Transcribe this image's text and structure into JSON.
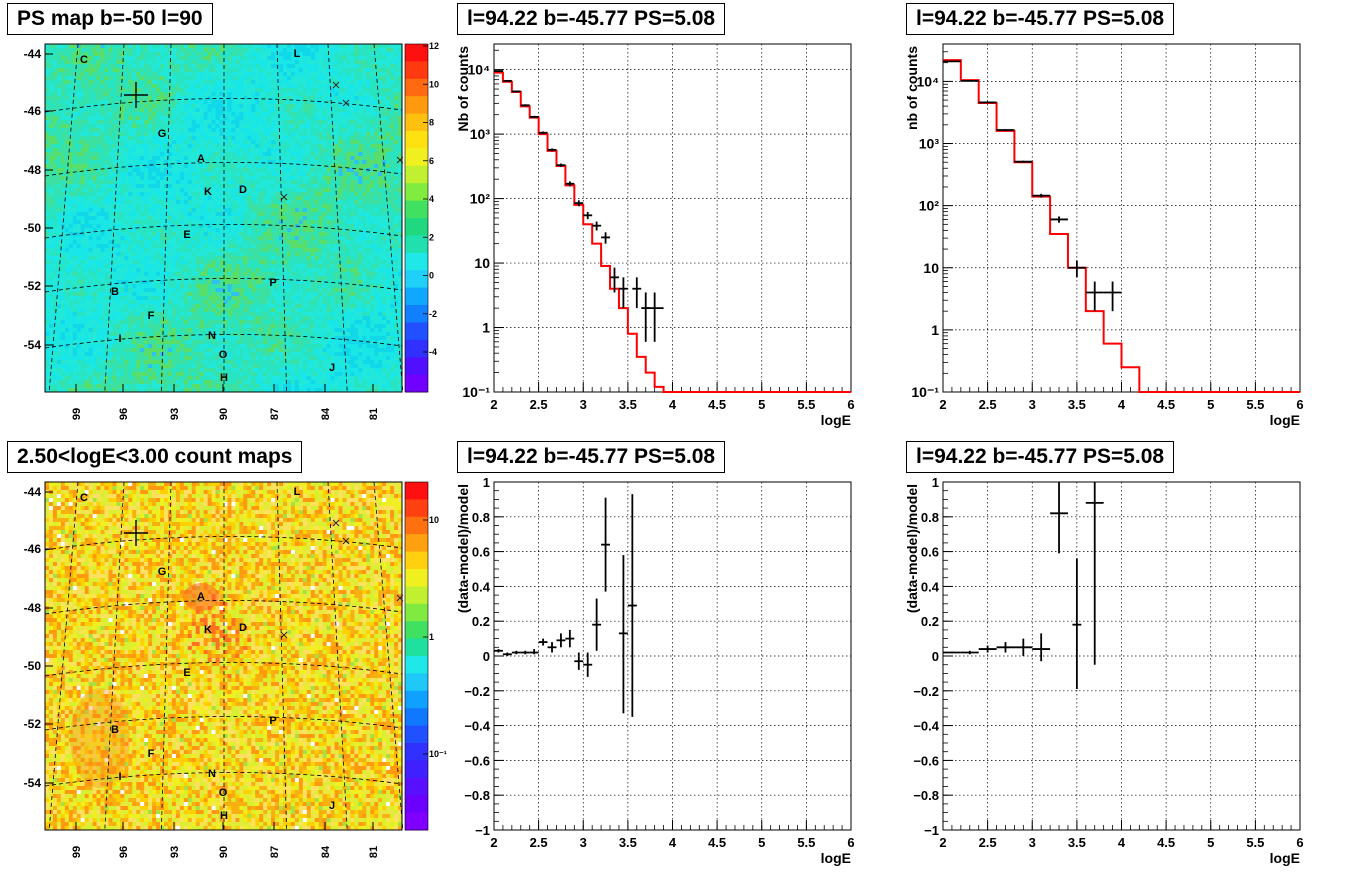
{
  "panels": {
    "map_ps": {
      "title": "PS map b=-50 l=90",
      "xticks": [
        "99",
        "96",
        "93",
        "90",
        "87",
        "84",
        "81"
      ],
      "yticks": [
        "-44",
        "-46",
        "-48",
        "-50",
        "-52",
        "-54"
      ],
      "zticks": [
        "12",
        "10",
        "8",
        "6",
        "4",
        "2",
        "0",
        "-2",
        "-4"
      ],
      "sources": [
        "C",
        "L",
        "G",
        "A",
        "K",
        "D",
        "E",
        "B",
        "P",
        "F",
        "I",
        "N",
        "O",
        "H",
        "J"
      ],
      "colors": {
        "background": "#19e6e6",
        "accent": "#36d87a"
      }
    },
    "map_counts": {
      "title": "2.50<logE<3.00 count maps",
      "xticks": [
        "99",
        "96",
        "93",
        "90",
        "87",
        "84",
        "81"
      ],
      "yticks": [
        "-44",
        "-46",
        "-48",
        "-50",
        "-52",
        "-54"
      ],
      "zticks": [
        "10",
        "1",
        "10⁻¹"
      ],
      "sources": [
        "C",
        "L",
        "G",
        "A",
        "K",
        "D",
        "E",
        "B",
        "P",
        "F",
        "I",
        "N",
        "O",
        "H",
        "J"
      ]
    },
    "spec_left": {
      "title": "l=94.22 b=-45.77 PS=5.08"
    },
    "spec_right": {
      "title": "l=94.22 b=-45.77 PS=5.08"
    },
    "resid_left": {
      "title": "l=94.22 b=-45.77 PS=5.08"
    },
    "resid_right": {
      "title": "l=94.22 b=-45.77 PS=5.08"
    }
  },
  "chart_data": [
    {
      "id": "spec_left",
      "type": "line",
      "xlabel": "logE",
      "ylabel": "Nb of counts",
      "xlim": [
        2,
        6
      ],
      "ylim": [
        0.1,
        25000
      ],
      "log_y": true,
      "grid": true,
      "xticks": [
        "2",
        "2.5",
        "3",
        "3.5",
        "4",
        "4.5",
        "5",
        "5.5",
        "6"
      ],
      "yticks": [
        {
          "v": 0.1,
          "label": "10⁻¹"
        },
        {
          "v": 1,
          "label": "1"
        },
        {
          "v": 10,
          "label": "10"
        },
        {
          "v": 100,
          "label": "10²"
        },
        {
          "v": 1000,
          "label": "10³"
        },
        {
          "v": 10000,
          "label": "10⁴"
        }
      ],
      "model_step": {
        "name": "model",
        "color": "#ff0000",
        "edges": [
          2,
          2.1,
          2.2,
          2.3,
          2.4,
          2.5,
          2.6,
          2.7,
          2.8,
          2.9,
          3.0,
          3.1,
          3.2,
          3.3,
          3.4,
          3.5,
          3.6,
          3.7,
          3.8,
          3.9,
          4.0,
          6.0
        ],
        "values": [
          9000,
          6500,
          4500,
          2700,
          1800,
          1000,
          550,
          320,
          160,
          80,
          40,
          20,
          9,
          4,
          2,
          0.8,
          0.35,
          0.2,
          0.12,
          0.1,
          0.1
        ]
      },
      "data_points": [
        {
          "x": 2.05,
          "y": 9500,
          "xe": 0.05,
          "lo": 9300,
          "hi": 9700
        },
        {
          "x": 2.15,
          "y": 6700,
          "xe": 0.05,
          "lo": 6550,
          "hi": 6850
        },
        {
          "x": 2.25,
          "y": 4600,
          "xe": 0.05,
          "lo": 4450,
          "hi": 4750
        },
        {
          "x": 2.35,
          "y": 2800,
          "xe": 0.05,
          "lo": 2700,
          "hi": 2900
        },
        {
          "x": 2.45,
          "y": 1850,
          "xe": 0.05,
          "lo": 1780,
          "hi": 1920
        },
        {
          "x": 2.55,
          "y": 1050,
          "xe": 0.05,
          "lo": 1000,
          "hi": 1100
        },
        {
          "x": 2.65,
          "y": 570,
          "xe": 0.05,
          "lo": 540,
          "hi": 600
        },
        {
          "x": 2.75,
          "y": 330,
          "xe": 0.05,
          "lo": 310,
          "hi": 350
        },
        {
          "x": 2.85,
          "y": 170,
          "xe": 0.05,
          "lo": 155,
          "hi": 185
        },
        {
          "x": 2.95,
          "y": 85,
          "xe": 0.05,
          "lo": 76,
          "hi": 94
        },
        {
          "x": 3.05,
          "y": 55,
          "xe": 0.05,
          "lo": 48,
          "hi": 62
        },
        {
          "x": 3.15,
          "y": 38,
          "xe": 0.05,
          "lo": 32,
          "hi": 44
        },
        {
          "x": 3.25,
          "y": 25,
          "xe": 0.05,
          "lo": 20,
          "hi": 30
        },
        {
          "x": 3.35,
          "y": 6,
          "xe": 0.05,
          "lo": 3.5,
          "hi": 8.5
        },
        {
          "x": 3.45,
          "y": 4,
          "xe": 0.05,
          "lo": 2,
          "hi": 6
        },
        {
          "x": 3.6,
          "y": 4,
          "xe": 0.05,
          "lo": 2,
          "hi": 6
        },
        {
          "x": 3.7,
          "y": 2,
          "xe": 0.05,
          "lo": 0.6,
          "hi": 3.5
        },
        {
          "x": 3.8,
          "y": 2,
          "xe": 0.1,
          "lo": 0.6,
          "hi": 3.5
        }
      ]
    },
    {
      "id": "spec_right",
      "type": "line",
      "xlabel": "logE",
      "ylabel": "nb of counts",
      "xlim": [
        2,
        6
      ],
      "ylim": [
        0.1,
        40000
      ],
      "log_y": true,
      "grid": true,
      "xticks": [
        "2",
        "2.5",
        "3",
        "3.5",
        "4",
        "4.5",
        "5",
        "5.5",
        "6"
      ],
      "yticks": [
        {
          "v": 0.1,
          "label": "10⁻¹"
        },
        {
          "v": 1,
          "label": "1"
        },
        {
          "v": 10,
          "label": "10"
        },
        {
          "v": 100,
          "label": "10²"
        },
        {
          "v": 1000,
          "label": "10³"
        },
        {
          "v": 10000,
          "label": "10⁴"
        }
      ],
      "model_step": {
        "name": "model",
        "color": "#ff0000",
        "edges": [
          2,
          2.2,
          2.4,
          2.6,
          2.8,
          3.0,
          3.2,
          3.4,
          3.6,
          3.8,
          4.0,
          4.2,
          6.0
        ],
        "values": [
          22000,
          10500,
          4500,
          1600,
          500,
          140,
          35,
          10,
          2,
          0.6,
          0.25,
          0.1
        ]
      },
      "data_points": [
        {
          "x": 2.1,
          "y": 21000,
          "xe": 0.1,
          "lo": 20700,
          "hi": 21300
        },
        {
          "x": 2.3,
          "y": 10200,
          "xe": 0.1,
          "lo": 10000,
          "hi": 10400
        },
        {
          "x": 2.5,
          "y": 4600,
          "xe": 0.1,
          "lo": 4480,
          "hi": 4720
        },
        {
          "x": 2.7,
          "y": 1650,
          "xe": 0.1,
          "lo": 1600,
          "hi": 1700
        },
        {
          "x": 2.9,
          "y": 510,
          "xe": 0.1,
          "lo": 490,
          "hi": 530
        },
        {
          "x": 3.1,
          "y": 145,
          "xe": 0.1,
          "lo": 135,
          "hi": 155
        },
        {
          "x": 3.3,
          "y": 60,
          "xe": 0.1,
          "lo": 53,
          "hi": 67
        },
        {
          "x": 3.5,
          "y": 10,
          "xe": 0.1,
          "lo": 7,
          "hi": 13
        },
        {
          "x": 3.7,
          "y": 4,
          "xe": 0.1,
          "lo": 2,
          "hi": 6
        },
        {
          "x": 3.9,
          "y": 4,
          "xe": 0.1,
          "lo": 2,
          "hi": 6
        }
      ]
    },
    {
      "id": "resid_left",
      "type": "scatter",
      "xlabel": "logE",
      "ylabel": "(data-model)/model",
      "xlim": [
        2,
        6
      ],
      "ylim": [
        -1,
        1
      ],
      "grid": true,
      "xticks": [
        "2",
        "2.5",
        "3",
        "3.5",
        "4",
        "4.5",
        "5",
        "5.5",
        "6"
      ],
      "yticks": [
        "1",
        "0.8",
        "0.6",
        "0.4",
        "0.2",
        "0",
        "-0.2",
        "-0.4",
        "-0.6",
        "-0.8",
        "-1"
      ],
      "data_points": [
        {
          "x": 2.05,
          "y": 0.03,
          "xe": 0.05,
          "lo": 0.02,
          "hi": 0.04
        },
        {
          "x": 2.15,
          "y": 0.01,
          "xe": 0.05,
          "lo": 0.0,
          "hi": 0.02
        },
        {
          "x": 2.25,
          "y": 0.02,
          "xe": 0.05,
          "lo": 0.01,
          "hi": 0.03
        },
        {
          "x": 2.35,
          "y": 0.02,
          "xe": 0.05,
          "lo": 0.01,
          "hi": 0.03
        },
        {
          "x": 2.45,
          "y": 0.02,
          "xe": 0.05,
          "lo": 0.01,
          "hi": 0.04
        },
        {
          "x": 2.55,
          "y": 0.08,
          "xe": 0.05,
          "lo": 0.06,
          "hi": 0.1
        },
        {
          "x": 2.65,
          "y": 0.05,
          "xe": 0.05,
          "lo": 0.02,
          "hi": 0.08
        },
        {
          "x": 2.75,
          "y": 0.09,
          "xe": 0.05,
          "lo": 0.05,
          "hi": 0.13
        },
        {
          "x": 2.85,
          "y": 0.1,
          "xe": 0.05,
          "lo": 0.05,
          "hi": 0.15
        },
        {
          "x": 2.95,
          "y": -0.03,
          "xe": 0.05,
          "lo": -0.08,
          "hi": 0.02
        },
        {
          "x": 3.05,
          "y": -0.05,
          "xe": 0.05,
          "lo": -0.12,
          "hi": 0.02
        },
        {
          "x": 3.15,
          "y": 0.18,
          "xe": 0.05,
          "lo": 0.03,
          "hi": 0.33
        },
        {
          "x": 3.25,
          "y": 0.64,
          "xe": 0.05,
          "lo": 0.37,
          "hi": 0.91
        },
        {
          "x": 3.45,
          "y": 0.13,
          "xe": 0.05,
          "lo": -0.33,
          "hi": 0.58
        },
        {
          "x": 3.55,
          "y": 0.29,
          "xe": 0.05,
          "lo": -0.35,
          "hi": 0.93
        }
      ]
    },
    {
      "id": "resid_right",
      "type": "scatter",
      "xlabel": "logE",
      "ylabel": "(data-model)/model",
      "xlim": [
        2,
        6
      ],
      "ylim": [
        -1,
        1
      ],
      "grid": true,
      "xticks": [
        "2",
        "2.5",
        "3",
        "3.5",
        "4",
        "4.5",
        "5",
        "5.5",
        "6"
      ],
      "yticks": [
        "1",
        "0.8",
        "0.6",
        "0.4",
        "0.2",
        "0",
        "-0.2",
        "-0.4",
        "-0.6",
        "-0.8",
        "-1"
      ],
      "data_points": [
        {
          "x": 2.1,
          "y": 0.02,
          "xe": 0.1,
          "lo": 0.015,
          "hi": 0.025
        },
        {
          "x": 2.3,
          "y": 0.02,
          "xe": 0.1,
          "lo": 0.01,
          "hi": 0.03
        },
        {
          "x": 2.5,
          "y": 0.04,
          "xe": 0.1,
          "lo": 0.02,
          "hi": 0.06
        },
        {
          "x": 2.7,
          "y": 0.05,
          "xe": 0.1,
          "lo": 0.02,
          "hi": 0.08
        },
        {
          "x": 2.9,
          "y": 0.05,
          "xe": 0.1,
          "lo": 0.0,
          "hi": 0.1
        },
        {
          "x": 3.1,
          "y": 0.04,
          "xe": 0.1,
          "lo": -0.03,
          "hi": 0.13
        },
        {
          "x": 3.3,
          "y": 0.82,
          "xe": 0.1,
          "lo": 0.59,
          "hi": 1.05
        },
        {
          "x": 3.5,
          "y": 0.18,
          "xe": 0.05,
          "lo": -0.19,
          "hi": 0.56
        },
        {
          "x": 3.7,
          "y": 0.88,
          "xe": 0.1,
          "lo": -0.05,
          "hi": 1.2
        }
      ]
    }
  ]
}
